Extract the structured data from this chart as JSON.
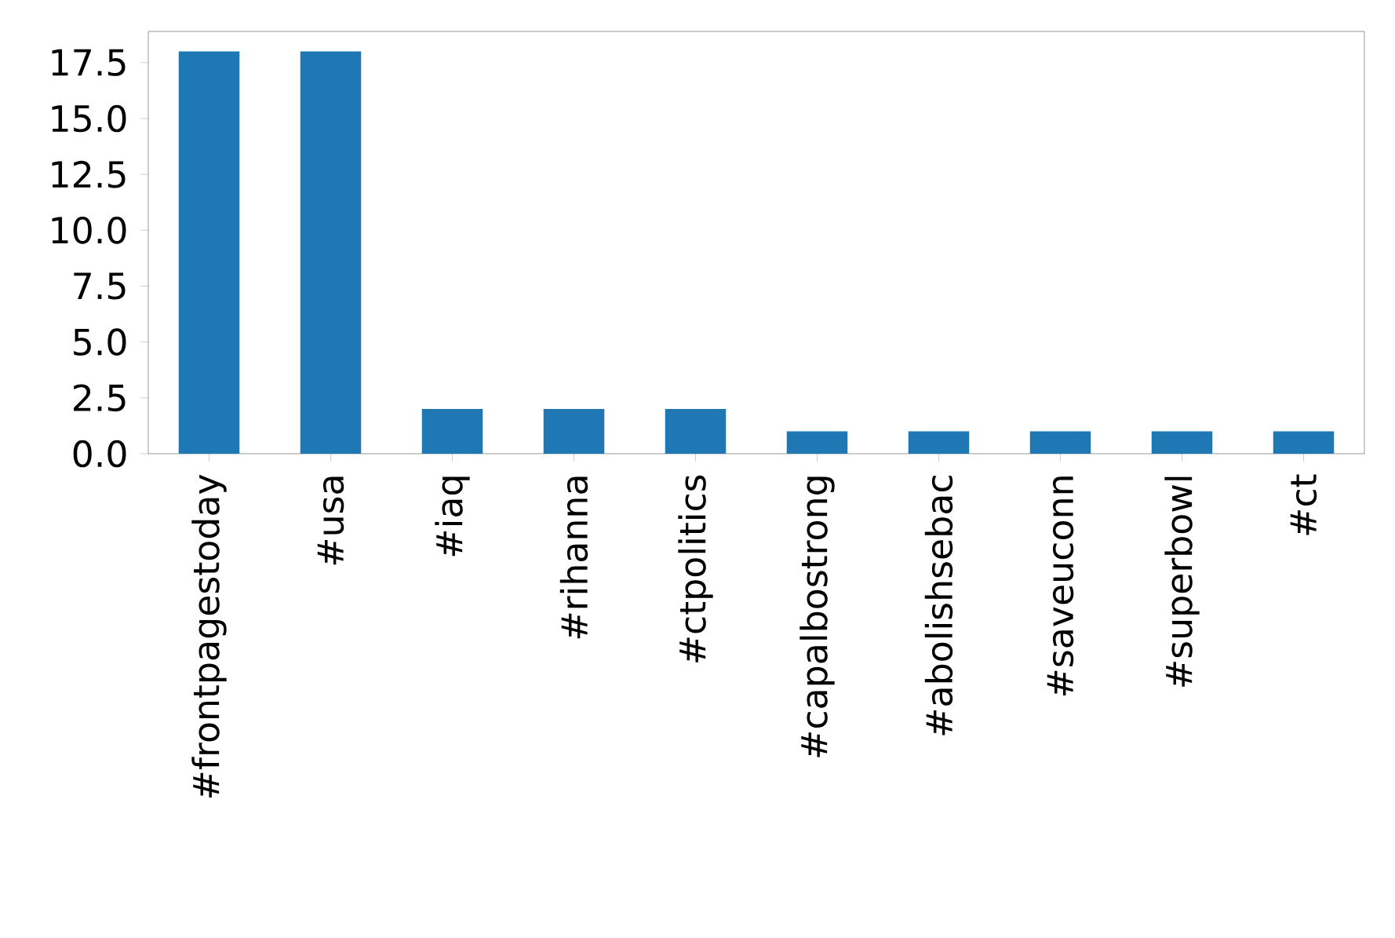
{
  "chart_data": {
    "type": "bar",
    "categories": [
      "#frontpagestoday",
      "#usa",
      "#iaq",
      "#rihanna",
      "#ctpolitics",
      "#capalbostrong",
      "#abolishsebac",
      "#saveuconn",
      "#superbowl",
      "#ct"
    ],
    "values": [
      18,
      18,
      2,
      2,
      2,
      1,
      1,
      1,
      1,
      1
    ],
    "color": "#1f77b4",
    "ylim": [
      0,
      18.9
    ],
    "yticks": [
      {
        "value": 0,
        "label": "0.0"
      },
      {
        "value": 2.5,
        "label": "2.5"
      },
      {
        "value": 5,
        "label": "5.0"
      },
      {
        "value": 7.5,
        "label": "7.5"
      },
      {
        "value": 10,
        "label": "10.0"
      },
      {
        "value": 12.5,
        "label": "12.5"
      },
      {
        "value": 15,
        "label": "15.0"
      },
      {
        "value": 17.5,
        "label": "17.5"
      }
    ],
    "grid": false
  }
}
